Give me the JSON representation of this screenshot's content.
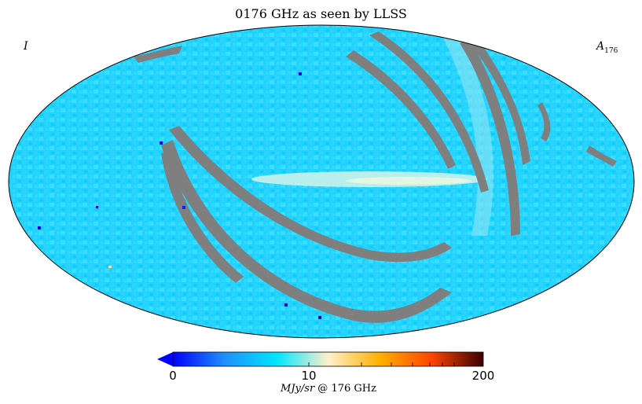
{
  "title": "0176 GHz as seen by LLSS",
  "corner_left": "I",
  "corner_right": {
    "main": "A",
    "sub": "176"
  },
  "colorbar": {
    "tick_min": "0",
    "tick_mid": "10",
    "tick_max": "200",
    "unit_italic": "MJy/sr",
    "unit_rest": " @ 176 GHz",
    "colors": [
      "#0000ff",
      "#1e90ff",
      "#00e5ff",
      "#fff0cc",
      "#ffb000",
      "#ff4500",
      "#3a0000"
    ]
  },
  "map": {
    "background_color": "#18d4ff",
    "band_color": "#7f7f7f",
    "plane_color": "#bfeee8",
    "outline_color": "#000000"
  }
}
